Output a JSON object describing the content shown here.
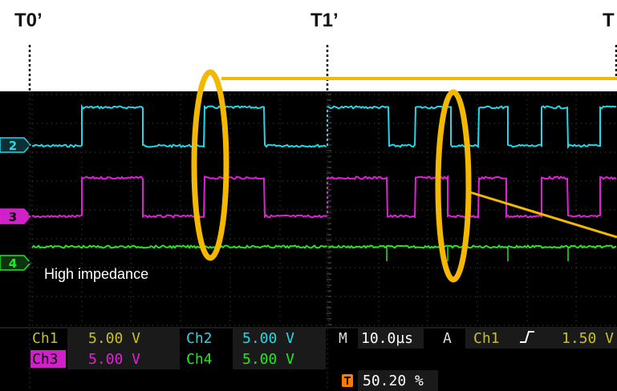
{
  "time_labels": {
    "t0": "T0’",
    "t1": "T1’",
    "t2": "T"
  },
  "annotation": {
    "text": "High impedance"
  },
  "channel_markers": {
    "ch2": "2",
    "ch3": "3",
    "ch4": "4"
  },
  "readout": {
    "ch1_label": "Ch1",
    "ch1_value": "5.00 V",
    "ch2_label": "Ch2",
    "ch2_value": "5.00 V",
    "ch3_label": "Ch3",
    "ch3_value": "5.00 V",
    "ch4_label": "Ch4",
    "ch4_value": "5.00 V",
    "timebase_prefix": "M",
    "timebase_value": "10.0µs",
    "trigger_prefix": "A",
    "trigger_source": "Ch1",
    "trigger_slope_icon": "rising-edge-icon",
    "trigger_level": "1.50 V",
    "trigger_position_icon": "trigger-position-icon",
    "trigger_position": "50.20 %"
  },
  "colors": {
    "ch1": "#c8c020",
    "ch2": "#22d8e8",
    "ch3": "#e020d8",
    "ch4": "#22e822",
    "highlight": "#f5b800",
    "trigger_marker": "#ff7a00"
  }
}
